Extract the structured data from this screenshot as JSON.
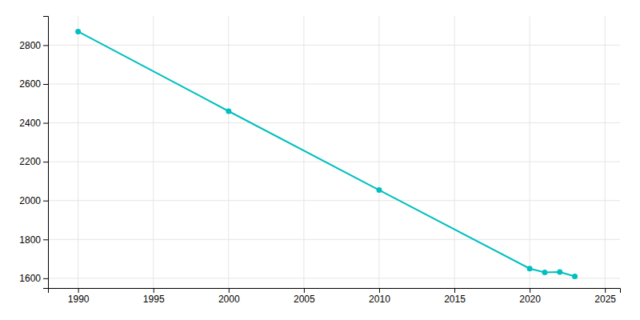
{
  "chart_data": {
    "type": "line",
    "x": [
      1990,
      2000,
      2010,
      2020,
      2021,
      2022,
      2023
    ],
    "values": [
      2870,
      2460,
      2054,
      1650,
      1630,
      1632,
      1610
    ],
    "color": "#00bfbf",
    "marker": "circle",
    "xlim": [
      1988,
      2026
    ],
    "ylim": [
      1550,
      2950
    ],
    "xticks": [
      1990,
      1995,
      2000,
      2005,
      2010,
      2015,
      2020,
      2025
    ],
    "yticks": [
      1600,
      1800,
      2000,
      2200,
      2400,
      2600,
      2800
    ],
    "grid": true
  }
}
